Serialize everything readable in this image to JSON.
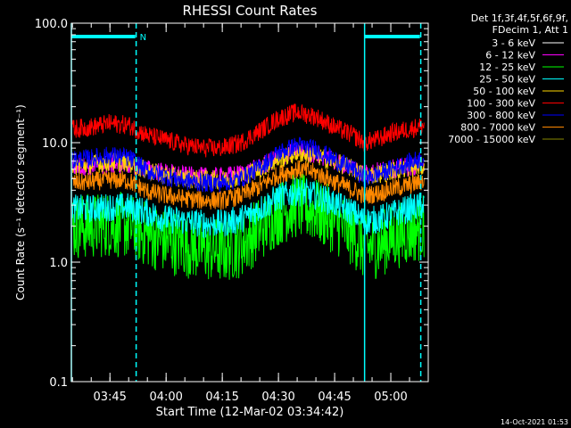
{
  "chart_data": {
    "type": "line",
    "title": "RHESSI Count Rates",
    "xlabel": "Start Time (12-Mar-02 03:34:42)",
    "ylabel": "Count Rate (s⁻¹ detector segment⁻¹)",
    "y_scale": "log",
    "ylim": [
      0.1,
      100.0
    ],
    "y_ticks": [
      "100.0",
      "10.0",
      "1.0",
      "0.1"
    ],
    "xlim": [
      "03:34:42",
      "05:10:00"
    ],
    "x_ticks": [
      "03:45",
      "04:00",
      "04:15",
      "04:30",
      "04:45",
      "05:00"
    ],
    "grid": false,
    "legend_position": "right",
    "legend_header": [
      "Det 1f,3f,4f,5f,6f,9f,",
      "FDecim 1, Att 1"
    ],
    "footer_timestamp": "14-Oct-2021 01:53",
    "flag_label": "N",
    "flag_color": "#00ffff",
    "night_intervals": [
      [
        "03:34:42",
        "03:52:00"
      ],
      [
        "04:53:00",
        "05:08:00"
      ]
    ],
    "series": [
      {
        "name": "3 - 6 keV",
        "color": "#000000",
        "x": [
          "03:35",
          "03:40",
          "03:45",
          "03:50",
          "03:55",
          "04:00",
          "04:05",
          "04:10",
          "04:15",
          "04:20",
          "04:25",
          "04:30",
          "04:35",
          "04:40",
          "04:45",
          "04:50",
          "04:53",
          "04:57",
          "05:00",
          "05:05",
          "05:09"
        ],
        "values": [
          1.8,
          1.8,
          1.9,
          1.8,
          1.5,
          1.3,
          1.2,
          1.1,
          1.0,
          1.2,
          1.6,
          2.4,
          2.8,
          2.5,
          1.9,
          1.4,
          1.0,
          1.1,
          1.3,
          1.5,
          1.7
        ]
      },
      {
        "name": "6 - 12 keV",
        "color": "#ff00ff",
        "x": [
          "03:35",
          "03:40",
          "03:45",
          "03:50",
          "03:55",
          "04:00",
          "04:05",
          "04:10",
          "04:15",
          "04:20",
          "04:25",
          "04:30",
          "04:35",
          "04:40",
          "04:45",
          "04:50",
          "04:53",
          "04:57",
          "05:00",
          "05:05",
          "05:09"
        ],
        "values": [
          6.3,
          6.4,
          6.6,
          6.6,
          6.0,
          5.6,
          5.3,
          5.2,
          5.2,
          5.5,
          6.2,
          7.5,
          8.5,
          8.0,
          7.0,
          6.2,
          5.5,
          5.8,
          6.0,
          6.3,
          6.6
        ]
      },
      {
        "name": "12 - 25 keV",
        "color": "#00ff00",
        "x": [
          "03:35",
          "03:40",
          "03:45",
          "03:50",
          "03:55",
          "04:00",
          "04:05",
          "04:10",
          "04:15",
          "04:20",
          "04:25",
          "04:30",
          "04:35",
          "04:40",
          "04:45",
          "04:50",
          "04:53",
          "04:57",
          "05:00",
          "05:05",
          "05:09"
        ],
        "values": [
          2.0,
          2.0,
          2.1,
          2.0,
          1.7,
          1.5,
          1.4,
          1.3,
          1.25,
          1.4,
          1.9,
          2.6,
          3.0,
          2.7,
          2.2,
          1.7,
          1.3,
          1.4,
          1.6,
          1.8,
          2.0
        ]
      },
      {
        "name": "25 - 50 keV",
        "color": "#00ffff",
        "x": [
          "03:35",
          "03:40",
          "03:45",
          "03:50",
          "03:55",
          "04:00",
          "04:05",
          "04:10",
          "04:15",
          "04:20",
          "04:25",
          "04:30",
          "04:35",
          "04:40",
          "04:45",
          "04:50",
          "04:53",
          "04:57",
          "05:00",
          "05:05",
          "05:09"
        ],
        "values": [
          2.8,
          2.8,
          2.9,
          2.9,
          2.6,
          2.3,
          2.2,
          2.1,
          2.1,
          2.3,
          2.8,
          3.5,
          3.9,
          3.6,
          3.1,
          2.6,
          2.2,
          2.3,
          2.5,
          2.8,
          3.0
        ]
      },
      {
        "name": "50 - 100 keV",
        "color": "#ffd700",
        "x": [
          "03:35",
          "03:40",
          "03:45",
          "03:50",
          "03:55",
          "04:00",
          "04:05",
          "04:10",
          "04:15",
          "04:20",
          "04:25",
          "04:30",
          "04:35",
          "04:40",
          "04:45",
          "04:50",
          "04:53",
          "04:57",
          "05:00",
          "05:05",
          "05:09"
        ],
        "values": [
          6.4,
          6.6,
          6.9,
          6.8,
          5.8,
          5.3,
          5.0,
          4.9,
          4.9,
          5.2,
          6.0,
          7.2,
          8.2,
          7.8,
          6.9,
          6.0,
          5.3,
          5.5,
          5.8,
          6.1,
          6.4
        ]
      },
      {
        "name": "100 - 300 keV",
        "color": "#ff0000",
        "x": [
          "03:35",
          "03:40",
          "03:45",
          "03:50",
          "03:55",
          "04:00",
          "04:05",
          "04:10",
          "04:15",
          "04:20",
          "04:25",
          "04:30",
          "04:35",
          "04:40",
          "04:45",
          "04:50",
          "04:53",
          "04:57",
          "05:00",
          "05:05",
          "05:09"
        ],
        "values": [
          13.0,
          13.5,
          14.5,
          14.0,
          11.5,
          10.5,
          9.5,
          9.0,
          9.0,
          10.0,
          12.5,
          16.0,
          18.0,
          16.5,
          13.5,
          11.5,
          10.0,
          10.8,
          12.0,
          13.0,
          14.0
        ]
      },
      {
        "name": "300 - 800 keV",
        "color": "#0000ff",
        "x": [
          "03:35",
          "03:40",
          "03:45",
          "03:50",
          "03:55",
          "04:00",
          "04:05",
          "04:10",
          "04:15",
          "04:20",
          "04:25",
          "04:30",
          "04:35",
          "04:40",
          "04:45",
          "04:50",
          "04:53",
          "04:57",
          "05:00",
          "05:05",
          "05:09"
        ],
        "values": [
          7.2,
          7.4,
          7.8,
          7.5,
          5.8,
          5.2,
          4.8,
          4.6,
          4.6,
          5.0,
          6.2,
          8.2,
          9.5,
          8.8,
          7.2,
          6.0,
          5.0,
          5.5,
          6.0,
          6.8,
          7.5
        ]
      },
      {
        "name": "800 - 7000 keV",
        "color": "#ff8800",
        "x": [
          "03:35",
          "03:40",
          "03:45",
          "03:50",
          "03:55",
          "04:00",
          "04:05",
          "04:10",
          "04:15",
          "04:20",
          "04:25",
          "04:30",
          "04:35",
          "04:40",
          "04:45",
          "04:50",
          "04:53",
          "04:57",
          "05:00",
          "05:05",
          "05:09"
        ],
        "values": [
          4.6,
          4.7,
          4.9,
          4.8,
          3.9,
          3.6,
          3.4,
          3.3,
          3.3,
          3.6,
          4.3,
          5.4,
          6.0,
          5.6,
          4.7,
          4.0,
          3.6,
          3.8,
          4.1,
          4.4,
          4.8
        ]
      },
      {
        "name": "7000 - 15000 keV",
        "color": "#888800",
        "x": [],
        "values": []
      }
    ]
  }
}
